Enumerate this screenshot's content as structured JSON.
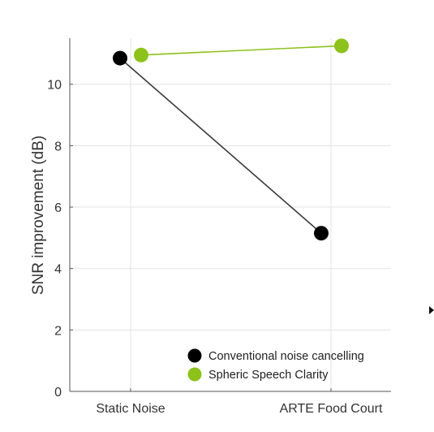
{
  "chart_data": {
    "type": "line",
    "title": "",
    "xlabel": "",
    "ylabel": "SNR improvement (dB)",
    "categories": [
      "Static Noise",
      "ARTE Food Court"
    ],
    "ylim": [
      0,
      11.5
    ],
    "yticks": [
      0,
      2,
      4,
      6,
      8,
      10
    ],
    "grid": true,
    "legend_position": "bottom-right",
    "series": [
      {
        "name": "Conventional noise cancelling",
        "color": "#000000",
        "line_color": "#3a3a3a",
        "values": [
          10.85,
          5.15
        ]
      },
      {
        "name": "Spheric Speech Clarity",
        "color": "#8cc21a",
        "line_color": "#8cc21a",
        "values": [
          10.95,
          11.25
        ]
      }
    ]
  }
}
